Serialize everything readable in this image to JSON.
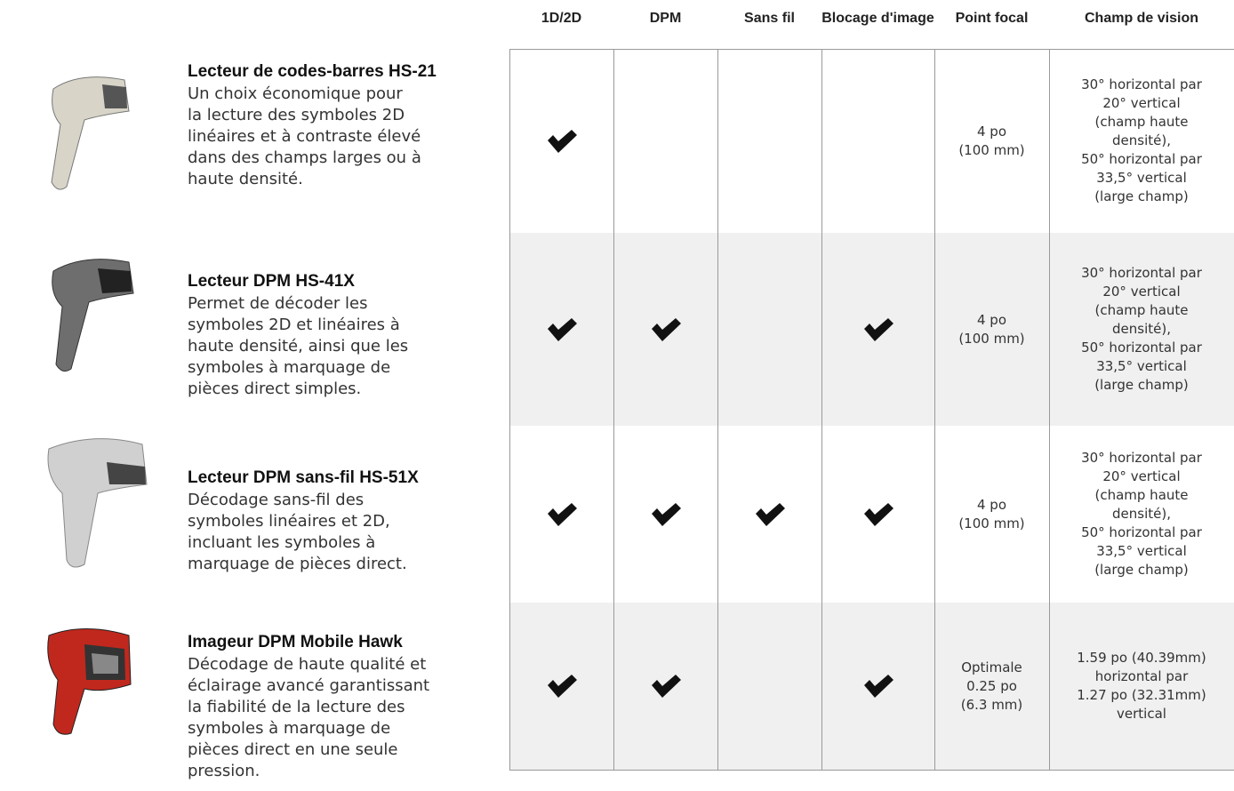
{
  "table": {
    "columns": [
      "1D/2D",
      "DPM",
      "Sans fil",
      "Blocage d'image",
      "Point focal",
      "Champ de vision"
    ],
    "rows": [
      {
        "title": "Lecteur de codes-barres HS-21",
        "description": [
          "Un choix économique pour",
          "la lecture des symboles 2D",
          "linéaires et à contraste élevé",
          "dans des champs larges ou à",
          "haute densité."
        ],
        "features": [
          true,
          false,
          false,
          false
        ],
        "focal": [
          "4 po",
          "(100 mm)"
        ],
        "field": [
          "30° horizontal par",
          "20° vertical",
          "(champ haute",
          "densité),",
          "50° horizontal par",
          "33,5° vertical",
          "(large champ)"
        ]
      },
      {
        "title": "Lecteur DPM HS-41X",
        "description": [
          "Permet de décoder les",
          "symboles 2D et linéaires à",
          "haute densité, ainsi que les",
          "symboles à marquage de",
          "pièces direct simples."
        ],
        "features": [
          true,
          true,
          false,
          true
        ],
        "focal": [
          "4 po",
          "(100 mm)"
        ],
        "field": [
          "30° horizontal par",
          "20° vertical",
          "(champ haute",
          "densité),",
          "50° horizontal par",
          "33,5° vertical",
          "(large champ)"
        ]
      },
      {
        "title": "Lecteur DPM sans-fil HS-51X",
        "description": [
          "Décodage sans-fil des",
          "symboles linéaires et 2D,",
          "incluant les symboles à",
          "marquage de pièces direct."
        ],
        "features": [
          true,
          true,
          true,
          true
        ],
        "focal": [
          "4 po",
          "(100 mm)"
        ],
        "field": [
          "30° horizontal par",
          "20° vertical",
          "(champ haute",
          "densité),",
          "50° horizontal par",
          "33,5° vertical",
          "(large champ)"
        ]
      },
      {
        "title": "Imageur DPM Mobile Hawk",
        "description": [
          "Décodage de haute qualité et",
          "éclairage avancé garantissant",
          "la fiabilité de la lecture des",
          "symboles à marquage de",
          "pièces direct en une seule",
          "pression."
        ],
        "features": [
          true,
          true,
          false,
          true
        ],
        "focal": [
          "Optimale",
          "0.25 po",
          "(6.3 mm)"
        ],
        "field": [
          "1.59 po (40.39mm)",
          "horizontal par",
          "1.27 po (32.31mm)",
          "vertical"
        ]
      }
    ]
  }
}
